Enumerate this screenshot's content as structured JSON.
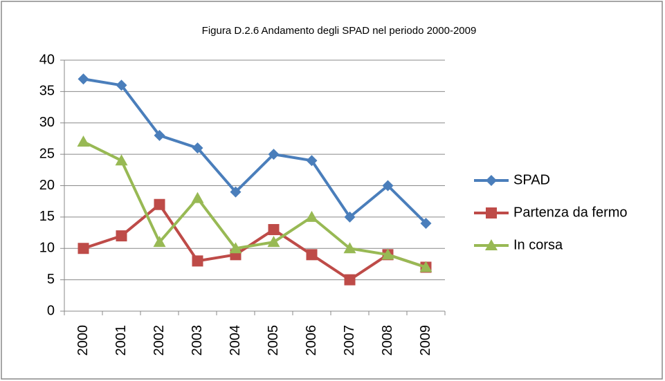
{
  "chart_data": {
    "type": "line",
    "title": "Figura D.2.6 Andamento degli SPAD nel periodo 2000-2009",
    "categories": [
      "2000",
      "2001",
      "2002",
      "2003",
      "2004",
      "2005",
      "2006",
      "2007",
      "2008",
      "2009"
    ],
    "series": [
      {
        "name": "SPAD",
        "color": "#4a7ebb",
        "marker": "diamond",
        "values": [
          37,
          36,
          28,
          26,
          19,
          25,
          24,
          15,
          20,
          14
        ]
      },
      {
        "name": "Partenza da fermo",
        "color": "#be4b48",
        "marker": "square",
        "values": [
          10,
          12,
          17,
          8,
          9,
          13,
          9,
          5,
          9,
          7
        ]
      },
      {
        "name": "In corsa",
        "color": "#98b954",
        "marker": "triangle",
        "values": [
          27,
          24,
          11,
          18,
          10,
          11,
          15,
          10,
          9,
          7
        ]
      }
    ],
    "ylim": [
      0,
      40
    ],
    "yticks": [
      0,
      5,
      10,
      15,
      20,
      25,
      30,
      35,
      40
    ],
    "grid": true,
    "legend": "right"
  }
}
